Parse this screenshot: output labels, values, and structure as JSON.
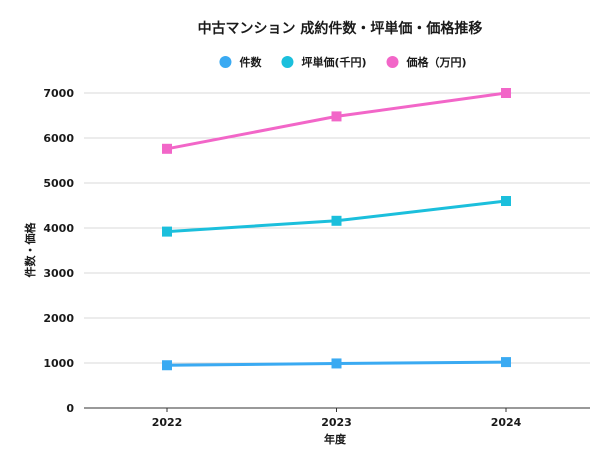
{
  "chart_data": {
    "type": "line",
    "title": "中古マンション 成約件数・坪単価・価格推移",
    "xlabel": "年度",
    "ylabel": "件数・価格",
    "categories": [
      "2022",
      "2023",
      "2024"
    ],
    "ylim": [
      0,
      7000
    ],
    "yticks": [
      0,
      1000,
      2000,
      3000,
      4000,
      5000,
      6000,
      7000
    ],
    "grid": true,
    "legend_position": "top-center",
    "series": [
      {
        "name": "件数",
        "values": [
          950,
          990,
          1020
        ],
        "color": "#3aaaf2",
        "marker": "square"
      },
      {
        "name": "坪単価(千円)",
        "values": [
          3920,
          4160,
          4600
        ],
        "color": "#1bbfdc",
        "marker": "square"
      },
      {
        "name": "価格（万円)",
        "values": [
          5760,
          6480,
          7000
        ],
        "color": "#f266c8",
        "marker": "square"
      }
    ]
  }
}
